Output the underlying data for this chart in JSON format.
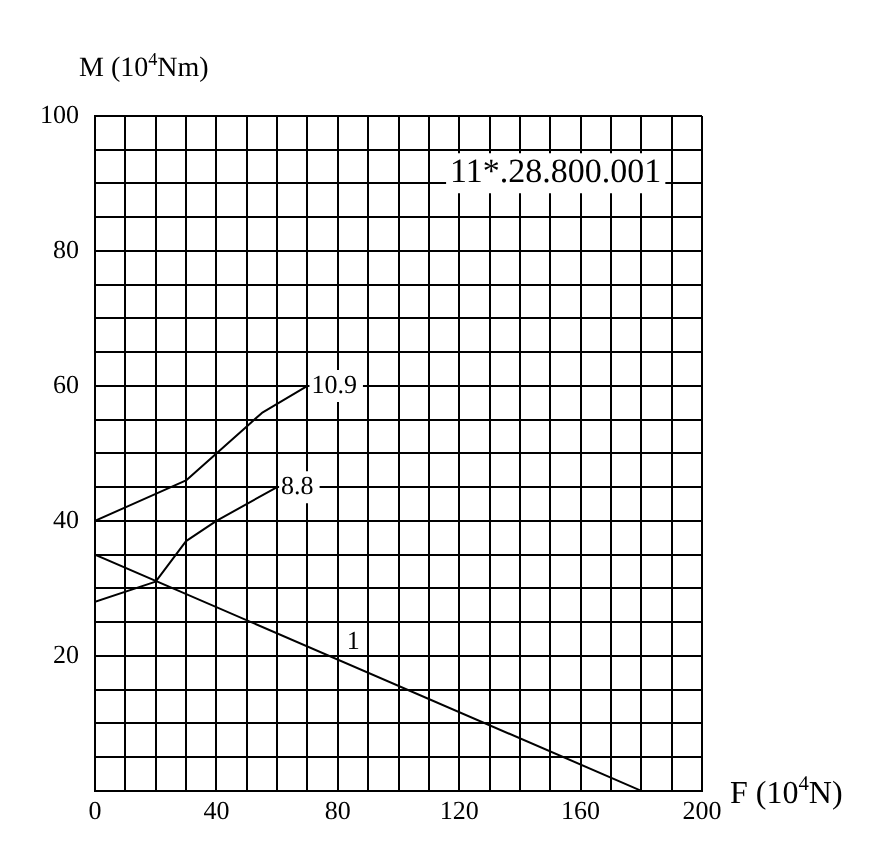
{
  "chart_data": {
    "type": "line",
    "xlabel": "F (10$^{4}$N)",
    "ylabel": "M (10$^{4}$Nm)",
    "annotations": [
      "11*.28.800.001"
    ],
    "series": [
      {
        "name": "10.9",
        "color": "#000000",
        "x": [
          0,
          10,
          20,
          30,
          40,
          50,
          55,
          70
        ],
        "values": [
          40,
          42,
          44,
          46,
          50,
          54,
          56,
          60
        ]
      },
      {
        "name": "8.8",
        "color": "#000000",
        "x": [
          0,
          20,
          30,
          40,
          60
        ],
        "values": [
          28,
          31,
          37,
          40,
          45
        ]
      },
      {
        "name": "1",
        "color": "#000000",
        "x": [
          0,
          180
        ],
        "values": [
          35,
          0
        ]
      }
    ],
    "xlim": [
      0,
      200
    ],
    "ylim": [
      0,
      100
    ],
    "xticks": [
      0,
      {
        "value": 10,
        "label": null
      },
      {
        "value": 20,
        "label": null
      },
      {
        "value": 30,
        "label": null
      },
      40,
      {
        "value": 50,
        "label": null
      },
      {
        "value": 60,
        "label": null
      },
      {
        "value": 70,
        "label": null
      },
      80,
      {
        "value": 90,
        "label": null
      },
      {
        "value": 100,
        "label": null
      },
      {
        "value": 110,
        "label": null
      },
      120,
      {
        "value": 130,
        "label": null
      },
      {
        "value": 140,
        "label": null
      },
      {
        "value": 150,
        "label": null
      },
      160,
      {
        "value": 170,
        "label": null
      },
      {
        "value": 180,
        "label": null
      },
      {
        "value": 190,
        "label": null
      },
      200
    ],
    "yticks": [
      {
        "value": 0,
        "label": null
      },
      {
        "value": 5,
        "label": null
      },
      {
        "value": 10,
        "label": null
      },
      {
        "value": 15,
        "label": null
      },
      20,
      {
        "value": 25,
        "label": null
      },
      {
        "value": 30,
        "label": null
      },
      {
        "value": 35,
        "label": null
      },
      40,
      {
        "value": 45,
        "label": null
      },
      {
        "value": 50,
        "label": null
      },
      {
        "value": 55,
        "label": null
      },
      60,
      {
        "value": 65,
        "label": null
      },
      {
        "value": 70,
        "label": null
      },
      {
        "value": 75,
        "label": null
      },
      80,
      {
        "value": 85,
        "label": null
      },
      {
        "value": 90,
        "label": null
      },
      {
        "value": 95,
        "label": null
      },
      100
    ],
    "grid": true,
    "legend": false,
    "marker": "none",
    "line_style": "solid"
  }
}
